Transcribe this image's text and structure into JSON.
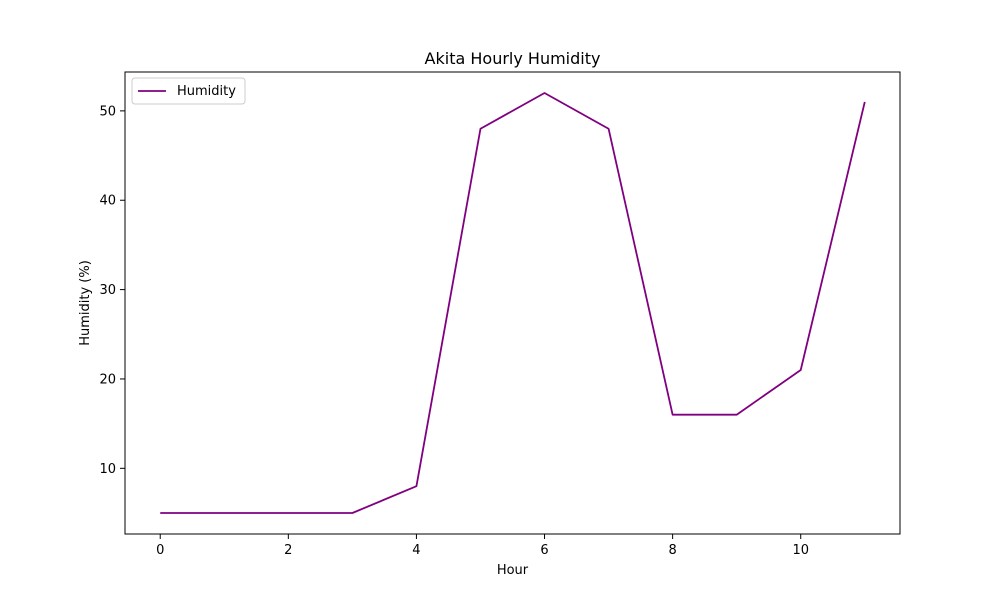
{
  "chart_data": {
    "type": "line",
    "title": "Akita Hourly Humidity",
    "xlabel": "Hour",
    "ylabel": "Humidity (%)",
    "x": [
      0,
      1,
      2,
      3,
      4,
      5,
      6,
      7,
      8,
      9,
      10,
      11
    ],
    "series": [
      {
        "name": "Humidity",
        "color": "#800080",
        "values": [
          5,
          5,
          5,
          5,
          8,
          48,
          52,
          48,
          16,
          16,
          21,
          51
        ]
      }
    ],
    "xlim": [
      -0.55,
      11.55
    ],
    "ylim": [
      2.65,
      54.35
    ],
    "xticks": [
      0,
      2,
      4,
      6,
      8,
      10
    ],
    "yticks": [
      10,
      20,
      30,
      40,
      50
    ],
    "xtick_labels": [
      "0",
      "2",
      "4",
      "6",
      "8",
      "10"
    ],
    "ytick_labels": [
      "10",
      "20",
      "30",
      "40",
      "50"
    ],
    "grid": false,
    "legend_position": "top-left"
  }
}
